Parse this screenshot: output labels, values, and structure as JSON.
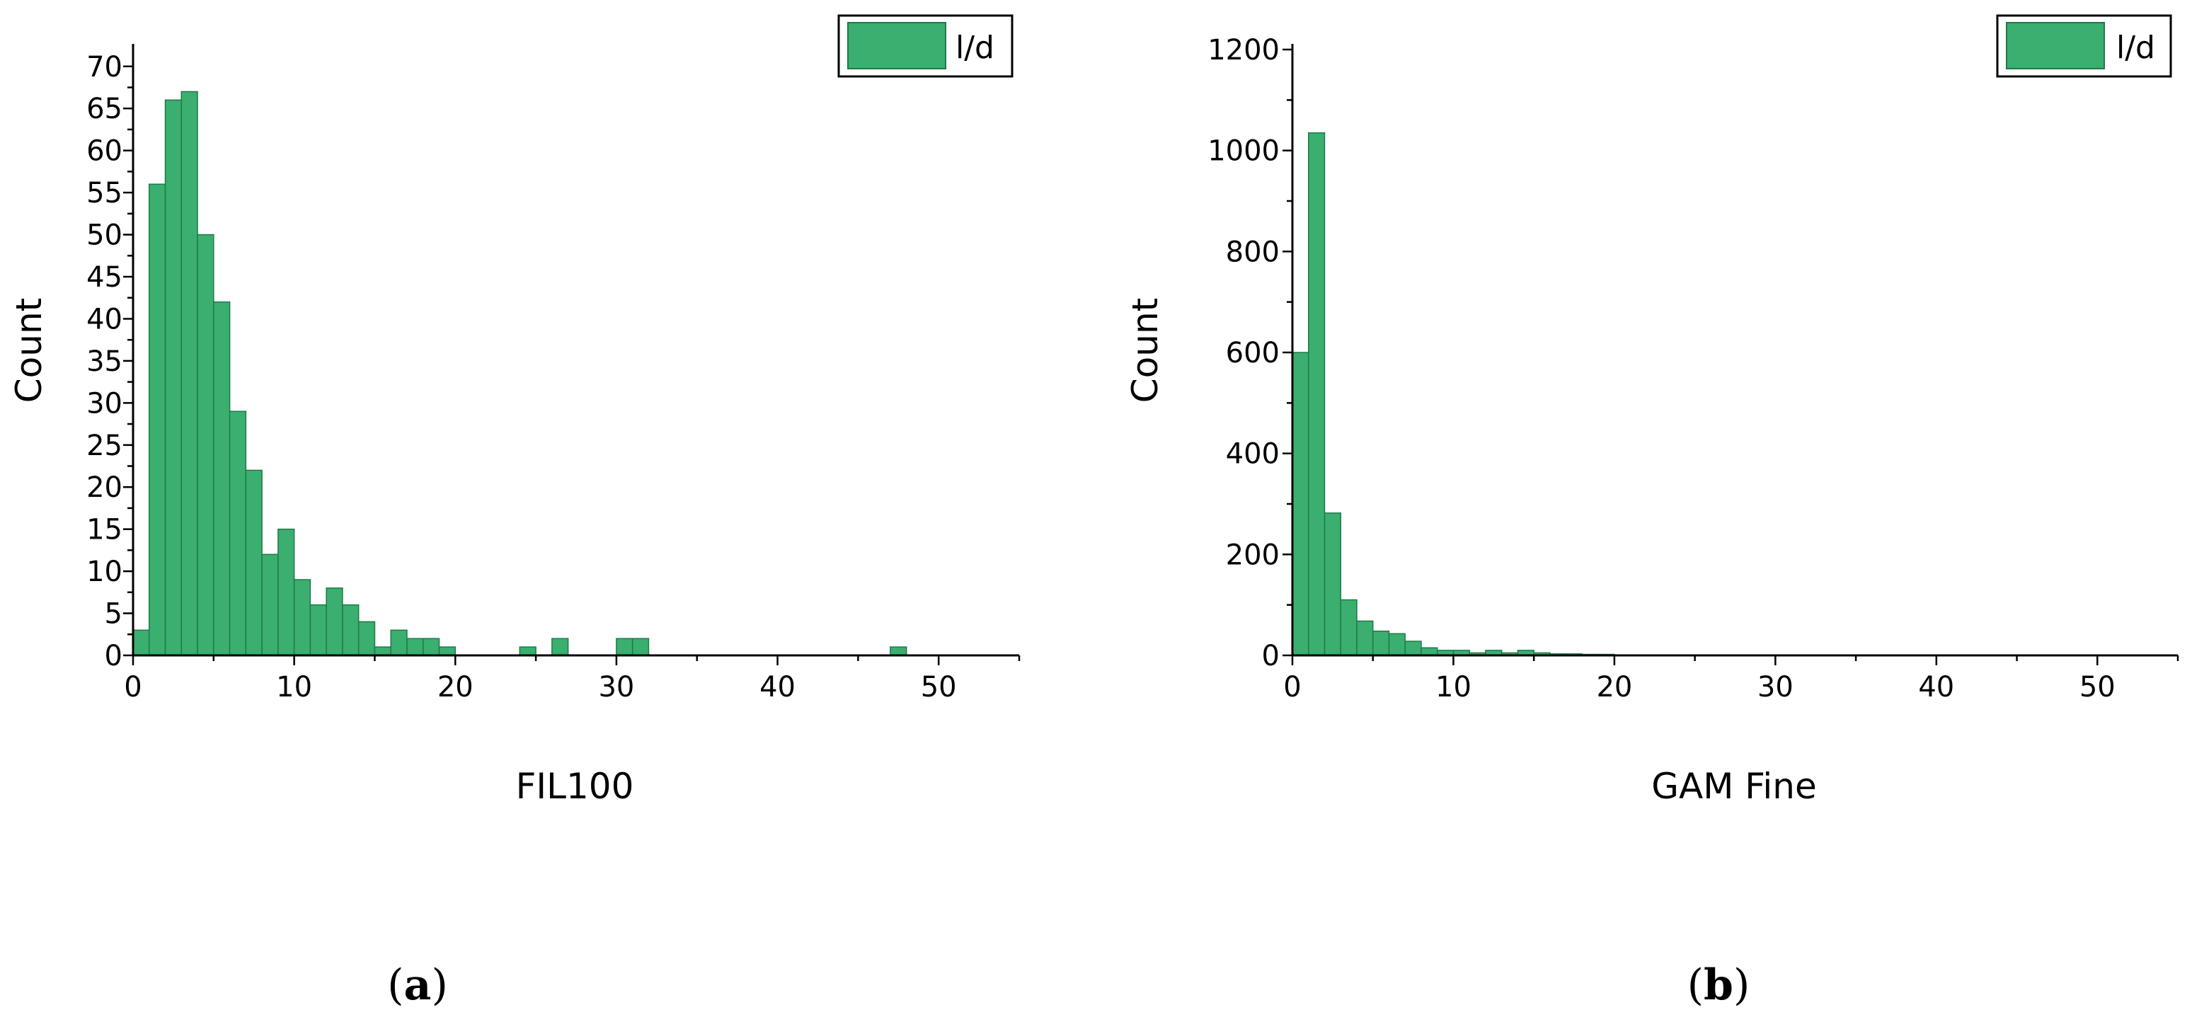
{
  "colors": {
    "bar_fill": "#3aaf6f",
    "bar_stroke": "#1f7a47",
    "axis": "#000000"
  },
  "chart_data": [
    {
      "type": "bar",
      "panel_label": {
        "open": "(",
        "letter": "a",
        "close": ")"
      },
      "xlabel": "FIL100",
      "ylabel": "Count",
      "xlim": [
        0,
        55
      ],
      "ylim": [
        0,
        72
      ],
      "x_ticks": [
        0,
        10,
        20,
        30,
        40,
        50
      ],
      "y_ticks": [
        0,
        5,
        10,
        15,
        20,
        25,
        30,
        35,
        40,
        45,
        50,
        55,
        60,
        65,
        70
      ],
      "grid": false,
      "legend_position": "top-right",
      "series": [
        {
          "name": "l/d",
          "bin_width": 1,
          "bin_start": 0,
          "values": [
            3,
            56,
            66,
            67,
            50,
            42,
            29,
            22,
            12,
            15,
            9,
            6,
            8,
            6,
            4,
            1,
            3,
            2,
            2,
            1,
            0,
            0,
            0,
            0,
            1,
            0,
            2,
            0,
            0,
            0,
            2,
            2,
            0,
            0,
            0,
            0,
            0,
            0,
            0,
            0,
            0,
            0,
            0,
            0,
            0,
            0,
            0,
            1
          ]
        }
      ]
    },
    {
      "type": "bar",
      "panel_label": {
        "open": "(",
        "letter": "b",
        "close": ")"
      },
      "xlabel": "GAM Fine",
      "ylabel": "Count",
      "xlim": [
        0,
        55
      ],
      "ylim": [
        0,
        1200
      ],
      "x_ticks": [
        0,
        10,
        20,
        30,
        40,
        50
      ],
      "y_ticks": [
        0,
        200,
        400,
        600,
        800,
        1000,
        1200
      ],
      "grid": false,
      "legend_position": "top-right",
      "series": [
        {
          "name": "l/d",
          "bin_width": 1,
          "bin_start": 0,
          "values": [
            600,
            1035,
            282,
            110,
            68,
            48,
            43,
            28,
            15,
            10,
            10,
            5,
            10,
            5,
            10,
            5,
            3,
            3,
            2,
            2
          ]
        }
      ]
    }
  ]
}
